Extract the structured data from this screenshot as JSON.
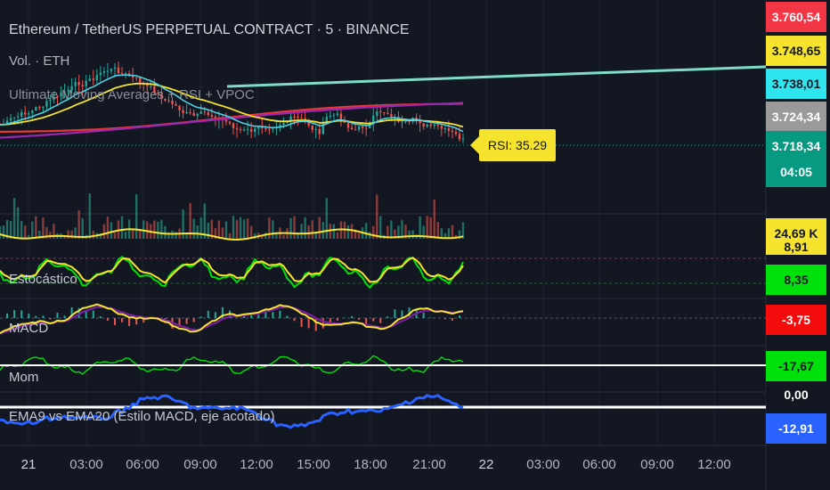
{
  "symbol_title": "Ethereum / TetherUS PERPETUAL CONTRACT · 5 · BINANCE",
  "vol_label": "Vol. · ETH",
  "indicator_title": "Ultimate Moving Averages + RSI + VPOC",
  "rsi_callout": "RSI: 35.29",
  "panes": {
    "stochastic": "Estocástico",
    "macd": "MACD",
    "mom": "Mom",
    "ema": "EMA9 vs EMA20 (Estilo MACD, eje acotado)"
  },
  "price_badges": [
    {
      "label": "3.760,54",
      "bg": "#f23645",
      "fg": "#ffffff"
    },
    {
      "label": "3.748,65",
      "bg": "#f5e32d",
      "fg": "#131722"
    },
    {
      "label": "3.738,01",
      "bg": "#2fe6ee",
      "fg": "#131722"
    },
    {
      "label": "3.724,34",
      "bg": "#9a9a9a",
      "fg": "#ffffff"
    },
    {
      "label": "3.718,34",
      "bg": "#089981",
      "fg": "#ffffff"
    },
    {
      "label": "04:05",
      "bg": "#089981",
      "fg": "#ffffff"
    }
  ],
  "indicator_badges": [
    {
      "label": "24,69 K",
      "bg": "#f5e32d",
      "fg": "#131722"
    },
    {
      "label": "8,91",
      "bg": "#f5e32d",
      "fg": "#131722"
    },
    {
      "label": "8,35",
      "bg": "#00e00a",
      "fg": "#131722"
    },
    {
      "label": "-3,75",
      "bg": "#f20c0c",
      "fg": "#ffffff"
    },
    {
      "label": "-17,67",
      "bg": "#00e00a",
      "fg": "#131722"
    },
    {
      "label": "0,00",
      "bg": "#131722",
      "fg": "#ffffff"
    },
    {
      "label": "-12,91",
      "bg": "#2962ff",
      "fg": "#ffffff"
    }
  ],
  "time_axis": [
    "21",
    "03:00",
    "06:00",
    "09:00",
    "12:00",
    "15:00",
    "18:00",
    "21:00",
    "22",
    "03:00",
    "06:00",
    "09:00",
    "12:00"
  ],
  "colors": {
    "background": "#131722",
    "trend_line": "#7fdcc8",
    "ma_red": "#e53935",
    "ma_purple": "#9c27b0",
    "ma_yellow": "#f5e32d",
    "ma_cyan": "#4dd0e1",
    "candle_up": "#26a69a",
    "candle_down": "#ef5350",
    "stoch_k": "#f5e32d",
    "stoch_d": "#00e00a",
    "macd_line": "#f5e32d",
    "signal_line": "#7b1fa2",
    "mom_line": "#00e00a",
    "ema_line": "#2962ff"
  }
}
